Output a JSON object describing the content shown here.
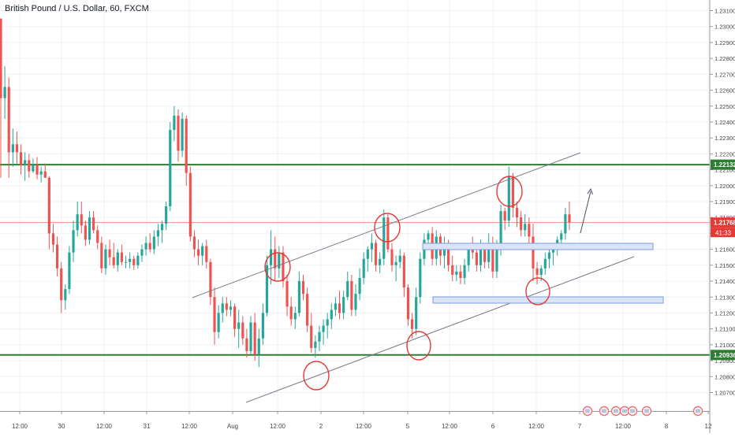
{
  "chart_data": {
    "type": "candlestick",
    "title": "British Pound / U.S. Dollar, 60, FXCM",
    "ylim": [
      1.2067,
      1.2316
    ],
    "y_ticks": [
      "1.23100",
      "1.23000",
      "1.22900",
      "1.22800",
      "1.22700",
      "1.22600",
      "1.22500",
      "1.22400",
      "1.22300",
      "1.22200",
      "1.22100",
      "1.22000",
      "1.21900",
      "1.21800",
      "1.21700",
      "1.21600",
      "1.21500",
      "1.21400",
      "1.21300",
      "1.21200",
      "1.21100",
      "1.21000",
      "1.20900",
      "1.20800",
      "1.20700"
    ],
    "x_ticks": [
      "12:00",
      "30",
      "12:00",
      "31",
      "12:00",
      "Aug",
      "12:00",
      "2",
      "12:00",
      "5",
      "12:00",
      "6",
      "12:00",
      "7",
      "12:00",
      "8",
      "12"
    ],
    "price_labels": [
      {
        "value": 1.22132,
        "label": "1.22132",
        "color": "#2e7d32"
      },
      {
        "value": 1.21768,
        "label": "1.21768",
        "color": "#e53935"
      },
      {
        "value": 1.20936,
        "label": "1.20936",
        "color": "#2e7d32"
      }
    ],
    "countdown": "41:33",
    "horizontal_lines": [
      {
        "value": 1.22132,
        "color": "#2e7d32"
      },
      {
        "value": 1.20936,
        "color": "#2e7d32"
      }
    ],
    "last_price_line": {
      "value": 1.21768,
      "color": "#f28b82"
    },
    "up_color": "#26a69a",
    "down_color": "#ef5350",
    "candles_ohlc": [
      [
        1.2305,
        1.2305,
        1.2205,
        1.2255
      ],
      [
        1.2255,
        1.2275,
        1.2242,
        1.2262
      ],
      [
        1.2262,
        1.2268,
        1.2205,
        1.2221
      ],
      [
        1.2221,
        1.2236,
        1.2212,
        1.2226
      ],
      [
        1.2226,
        1.2234,
        1.2214,
        1.2221
      ],
      [
        1.2221,
        1.2226,
        1.2207,
        1.2213
      ],
      [
        1.2213,
        1.2221,
        1.2203,
        1.2216
      ],
      [
        1.2216,
        1.222,
        1.2205,
        1.2209
      ],
      [
        1.2209,
        1.2217,
        1.2208,
        1.2213
      ],
      [
        1.2213,
        1.2218,
        1.2204,
        1.2207
      ],
      [
        1.2207,
        1.2212,
        1.2202,
        1.2209
      ],
      [
        1.2209,
        1.2214,
        1.2205,
        1.2205
      ],
      [
        1.2205,
        1.2206,
        1.216,
        1.217
      ],
      [
        1.217,
        1.2176,
        1.2158,
        1.2163
      ],
      [
        1.2163,
        1.2168,
        1.2143,
        1.2148
      ],
      [
        1.2148,
        1.2152,
        1.212,
        1.2128
      ],
      [
        1.2128,
        1.2138,
        1.2122,
        1.2135
      ],
      [
        1.2135,
        1.2162,
        1.2132,
        1.2158
      ],
      [
        1.2158,
        1.2178,
        1.2152,
        1.2172
      ],
      [
        1.2172,
        1.219,
        1.2168,
        1.2182
      ],
      [
        1.2182,
        1.219,
        1.217,
        1.2175
      ],
      [
        1.2175,
        1.2178,
        1.2162,
        1.2166
      ],
      [
        1.2166,
        1.2184,
        1.2163,
        1.218
      ],
      [
        1.218,
        1.2184,
        1.217,
        1.2172
      ],
      [
        1.2172,
        1.2175,
        1.216,
        1.2164
      ],
      [
        1.2164,
        1.2168,
        1.2145,
        1.2148
      ],
      [
        1.2148,
        1.2163,
        1.2144,
        1.216
      ],
      [
        1.216,
        1.2166,
        1.215,
        1.2155
      ],
      [
        1.2155,
        1.2164,
        1.2148,
        1.215
      ],
      [
        1.215,
        1.216,
        1.2146,
        1.2158
      ],
      [
        1.2158,
        1.2163,
        1.215,
        1.2152
      ],
      [
        1.2152,
        1.2156,
        1.2148,
        1.2152
      ],
      [
        1.2152,
        1.2158,
        1.2148,
        1.2154
      ],
      [
        1.2154,
        1.2156,
        1.2147,
        1.215
      ],
      [
        1.215,
        1.2158,
        1.2148,
        1.2156
      ],
      [
        1.2156,
        1.2163,
        1.2152,
        1.216
      ],
      [
        1.216,
        1.2168,
        1.2156,
        1.2164
      ],
      [
        1.2164,
        1.217,
        1.2158,
        1.216
      ],
      [
        1.216,
        1.2172,
        1.2157,
        1.2168
      ],
      [
        1.2168,
        1.2176,
        1.2162,
        1.2172
      ],
      [
        1.2172,
        1.2178,
        1.2164,
        1.2176
      ],
      [
        1.2176,
        1.219,
        1.2172,
        1.2187
      ],
      [
        1.2187,
        1.224,
        1.2184,
        1.2235
      ],
      [
        1.2235,
        1.225,
        1.2228,
        1.2244
      ],
      [
        1.2244,
        1.2248,
        1.2215,
        1.2222
      ],
      [
        1.2222,
        1.2246,
        1.2218,
        1.2242
      ],
      [
        1.2242,
        1.2244,
        1.22,
        1.2208
      ],
      [
        1.2208,
        1.2212,
        1.2165,
        1.2168
      ],
      [
        1.2168,
        1.2172,
        1.2155,
        1.216
      ],
      [
        1.216,
        1.2166,
        1.215,
        1.2156
      ],
      [
        1.2156,
        1.2164,
        1.215,
        1.2162
      ],
      [
        1.2162,
        1.2166,
        1.2148,
        1.2152
      ],
      [
        1.2152,
        1.2154,
        1.2125,
        1.213
      ],
      [
        1.213,
        1.2136,
        1.21,
        1.2108
      ],
      [
        1.2108,
        1.2125,
        1.2104,
        1.212
      ],
      [
        1.212,
        1.213,
        1.2114,
        1.2126
      ],
      [
        1.2126,
        1.213,
        1.2118,
        1.2122
      ],
      [
        1.2122,
        1.2128,
        1.2118,
        1.2124
      ],
      [
        1.2124,
        1.2126,
        1.2105,
        1.211
      ],
      [
        1.211,
        1.2122,
        1.2098,
        1.2114
      ],
      [
        1.2114,
        1.2118,
        1.21,
        1.2104
      ],
      [
        1.2104,
        1.211,
        1.2092,
        1.2096
      ],
      [
        1.2096,
        1.2118,
        1.2094,
        1.2114
      ],
      [
        1.2114,
        1.212,
        1.209,
        1.2094
      ],
      [
        1.2094,
        1.211,
        1.2086,
        1.2104
      ],
      [
        1.2104,
        1.2126,
        1.21,
        1.212
      ],
      [
        1.212,
        1.2156,
        1.2118,
        1.215
      ],
      [
        1.215,
        1.2172,
        1.2138,
        1.216
      ],
      [
        1.216,
        1.2168,
        1.214,
        1.2148
      ],
      [
        1.2148,
        1.2162,
        1.2142,
        1.2158
      ],
      [
        1.2158,
        1.2162,
        1.2136,
        1.214
      ],
      [
        1.214,
        1.2144,
        1.2118,
        1.2124
      ],
      [
        1.2124,
        1.213,
        1.2112,
        1.2116
      ],
      [
        1.2116,
        1.2124,
        1.211,
        1.212
      ],
      [
        1.212,
        1.2146,
        1.2118,
        1.214
      ],
      [
        1.214,
        1.2144,
        1.2128,
        1.2132
      ],
      [
        1.2132,
        1.2136,
        1.2108,
        1.2112
      ],
      [
        1.2112,
        1.212,
        1.2095,
        1.2098
      ],
      [
        1.2098,
        1.2106,
        1.2092,
        1.2102
      ],
      [
        1.2102,
        1.2112,
        1.2096,
        1.2108
      ],
      [
        1.2108,
        1.2116,
        1.21,
        1.2112
      ],
      [
        1.2112,
        1.212,
        1.2104,
        1.2116
      ],
      [
        1.2116,
        1.2126,
        1.211,
        1.2122
      ],
      [
        1.2122,
        1.213,
        1.2118,
        1.2126
      ],
      [
        1.2126,
        1.2134,
        1.2116,
        1.212
      ],
      [
        1.212,
        1.2134,
        1.2116,
        1.213
      ],
      [
        1.213,
        1.2146,
        1.2128,
        1.214
      ],
      [
        1.214,
        1.2144,
        1.2118,
        1.2122
      ],
      [
        1.2122,
        1.2138,
        1.2118,
        1.2132
      ],
      [
        1.2132,
        1.2148,
        1.2128,
        1.2142
      ],
      [
        1.2142,
        1.2158,
        1.2138,
        1.2154
      ],
      [
        1.2154,
        1.2162,
        1.2146,
        1.216
      ],
      [
        1.216,
        1.217,
        1.2152,
        1.2164
      ],
      [
        1.2164,
        1.2166,
        1.2146,
        1.215
      ],
      [
        1.215,
        1.2158,
        1.2145,
        1.2154
      ],
      [
        1.2154,
        1.2185,
        1.215,
        1.218
      ],
      [
        1.218,
        1.2182,
        1.2158,
        1.216
      ],
      [
        1.216,
        1.2164,
        1.2146,
        1.215
      ],
      [
        1.215,
        1.2156,
        1.214,
        1.2152
      ],
      [
        1.2152,
        1.216,
        1.2148,
        1.2156
      ],
      [
        1.2156,
        1.2158,
        1.213,
        1.2136
      ],
      [
        1.2136,
        1.2138,
        1.2112,
        1.2116
      ],
      [
        1.2116,
        1.212,
        1.2104,
        1.211
      ],
      [
        1.211,
        1.2136,
        1.2106,
        1.213
      ],
      [
        1.213,
        1.2158,
        1.2126,
        1.2154
      ],
      [
        1.2154,
        1.217,
        1.215,
        1.2166
      ],
      [
        1.2166,
        1.2172,
        1.216,
        1.217
      ],
      [
        1.217,
        1.2174,
        1.215,
        1.2154
      ],
      [
        1.2154,
        1.2172,
        1.215,
        1.2168
      ],
      [
        1.2168,
        1.217,
        1.215,
        1.2156
      ],
      [
        1.2156,
        1.2168,
        1.2148,
        1.2162
      ],
      [
        1.2162,
        1.2166,
        1.2146,
        1.215
      ],
      [
        1.215,
        1.2156,
        1.214,
        1.2144
      ],
      [
        1.2144,
        1.215,
        1.214,
        1.2146
      ],
      [
        1.2146,
        1.215,
        1.2138,
        1.2142
      ],
      [
        1.2142,
        1.2154,
        1.2138,
        1.215
      ],
      [
        1.215,
        1.2164,
        1.2146,
        1.216
      ],
      [
        1.216,
        1.2168,
        1.2154,
        1.2158
      ],
      [
        1.2158,
        1.2162,
        1.2146,
        1.215
      ],
      [
        1.215,
        1.2166,
        1.2146,
        1.216
      ],
      [
        1.216,
        1.2164,
        1.2148,
        1.2152
      ],
      [
        1.2152,
        1.217,
        1.2148,
        1.2164
      ],
      [
        1.2164,
        1.2168,
        1.2142,
        1.2146
      ],
      [
        1.2146,
        1.2166,
        1.2142,
        1.216
      ],
      [
        1.216,
        1.2188,
        1.2156,
        1.2184
      ],
      [
        1.2184,
        1.2186,
        1.2172,
        1.2178
      ],
      [
        1.2178,
        1.2212,
        1.2174,
        1.2206
      ],
      [
        1.2206,
        1.2208,
        1.218,
        1.2186
      ],
      [
        1.2186,
        1.219,
        1.2174,
        1.218
      ],
      [
        1.218,
        1.2184,
        1.2168,
        1.2172
      ],
      [
        1.2172,
        1.2182,
        1.2168,
        1.2176
      ],
      [
        1.2176,
        1.218,
        1.2164,
        1.2168
      ],
      [
        1.2168,
        1.2176,
        1.214,
        1.2148
      ],
      [
        1.2148,
        1.2152,
        1.2138,
        1.2144
      ],
      [
        1.2144,
        1.215,
        1.214,
        1.2148
      ],
      [
        1.2148,
        1.2158,
        1.2144,
        1.2154
      ],
      [
        1.2154,
        1.216,
        1.2148,
        1.2158
      ],
      [
        1.2158,
        1.2164,
        1.215,
        1.2162
      ],
      [
        1.2162,
        1.2168,
        1.2156,
        1.2166
      ],
      [
        1.2166,
        1.2172,
        1.216,
        1.217
      ],
      [
        1.217,
        1.2186,
        1.2166,
        1.2182
      ],
      [
        1.2182,
        1.219,
        1.2172,
        1.2177
      ]
    ]
  }
}
